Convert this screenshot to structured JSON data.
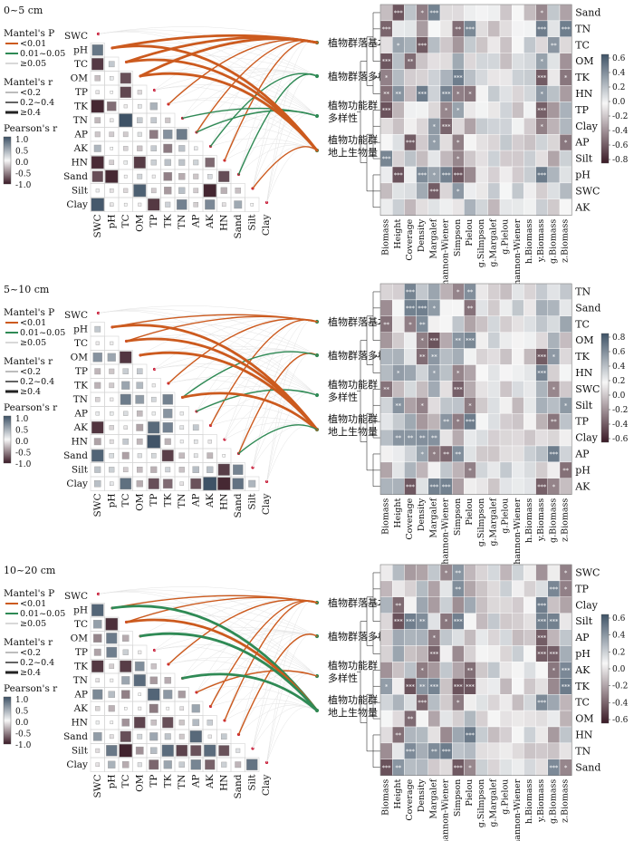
{
  "panels": [
    {
      "depth_label": "0~5 cm",
      "variable_order": [
        "SWC",
        "pH",
        "TC",
        "OM",
        "TP",
        "TK",
        "TN",
        "AP",
        "AK",
        "HN",
        "Sand",
        "Silt",
        "Clay"
      ],
      "heat_rows": [
        "Sand",
        "TN",
        "TC",
        "OM",
        "TK",
        "HN",
        "TP",
        "Clay",
        "AP",
        "Silt",
        "pH",
        "SWC",
        "AK"
      ],
      "colorbar_ticks": [
        "0.6",
        "0.4",
        "0.2",
        "0.0",
        "-0.2",
        "-0.4",
        "-0.6",
        "-0.8"
      ],
      "mantel": [
        {
          "from": "pH",
          "to": 0,
          "p": "lt01",
          "r": "ge04"
        },
        {
          "from": "TC",
          "to": 0,
          "p": "lt01",
          "r": "ge04"
        },
        {
          "from": "OM",
          "to": 0,
          "p": "lt01",
          "r": "ge04"
        },
        {
          "from": "TK",
          "to": 0,
          "p": "lt01",
          "r": "mid"
        },
        {
          "from": "AP",
          "to": 0,
          "p": "lt01",
          "r": "mid"
        },
        {
          "from": "HN",
          "to": 0,
          "p": "lt01",
          "r": "mid"
        },
        {
          "from": "AK",
          "to": 1,
          "p": "mid",
          "r": "mid"
        },
        {
          "from": "Sand",
          "to": 1,
          "p": "mid",
          "r": "mid"
        },
        {
          "from": "AP",
          "to": 2,
          "p": "mid",
          "r": "mid"
        },
        {
          "from": "TN",
          "to": 2,
          "p": "mid",
          "r": "mid"
        },
        {
          "from": "pH",
          "to": 3,
          "p": "lt01",
          "r": "ge04"
        },
        {
          "from": "TC",
          "to": 3,
          "p": "lt01",
          "r": "ge04"
        },
        {
          "from": "OM",
          "to": 3,
          "p": "lt01",
          "r": "ge04"
        },
        {
          "from": "Silt",
          "to": 3,
          "p": "lt01",
          "r": "mid"
        }
      ]
    },
    {
      "depth_label": "5~10 cm",
      "variable_order": [
        "SWC",
        "pH",
        "TC",
        "OM",
        "TP",
        "TK",
        "TN",
        "AP",
        "AK",
        "HN",
        "Sand",
        "Silt",
        "Clay"
      ],
      "heat_rows": [
        "TN",
        "Sand",
        "TC",
        "OM",
        "TK",
        "HN",
        "SWC",
        "Silt",
        "TP",
        "Clay",
        "AP",
        "pH",
        "AK"
      ],
      "colorbar_ticks": [
        "0.8",
        "0.6",
        "0.4",
        "0.2",
        "0.0",
        "-0.2",
        "-0.4",
        "-0.6"
      ],
      "mantel": [
        {
          "from": "pH",
          "to": 0,
          "p": "lt01",
          "r": "mid"
        },
        {
          "from": "TC",
          "to": 0,
          "p": "lt01",
          "r": "mid"
        },
        {
          "from": "TK",
          "to": 0,
          "p": "lt01",
          "r": "mid"
        },
        {
          "from": "AK",
          "to": 0,
          "p": "lt01",
          "r": "mid"
        },
        {
          "from": "Sand",
          "to": 1,
          "p": "lt01",
          "r": "mid"
        },
        {
          "from": "TN",
          "to": 1,
          "p": "mid",
          "r": "mid"
        },
        {
          "from": "AP",
          "to": 2,
          "p": "mid",
          "r": "mid"
        },
        {
          "from": "pH",
          "to": 3,
          "p": "lt01",
          "r": "ge04"
        },
        {
          "from": "TC",
          "to": 3,
          "p": "lt01",
          "r": "ge04"
        },
        {
          "from": "OM",
          "to": 3,
          "p": "lt01",
          "r": "ge04"
        },
        {
          "from": "TN",
          "to": 3,
          "p": "lt01",
          "r": "ge04"
        },
        {
          "from": "Sand",
          "to": 3,
          "p": "mid",
          "r": "mid"
        }
      ]
    },
    {
      "depth_label": "10~20 cm",
      "variable_order": [
        "SWC",
        "pH",
        "TC",
        "OM",
        "TP",
        "TK",
        "TN",
        "AP",
        "AK",
        "HN",
        "Sand",
        "Silt",
        "Clay"
      ],
      "heat_rows": [
        "SWC",
        "TP",
        "Clay",
        "Silt",
        "AP",
        "pH",
        "AK",
        "TK",
        "TC",
        "OM",
        "HN",
        "TN",
        "Sand"
      ],
      "colorbar_ticks": [
        "0.6",
        "0.4",
        "0.2",
        "0.0",
        "-0.2",
        "-0.4",
        "-0.6"
      ],
      "mantel": [
        {
          "from": "pH",
          "to": 0,
          "p": "lt01",
          "r": "mid"
        },
        {
          "from": "TC",
          "to": 0,
          "p": "lt01",
          "r": "mid"
        },
        {
          "from": "TK",
          "to": 0,
          "p": "lt01",
          "r": "mid"
        },
        {
          "from": "AK",
          "to": 0,
          "p": "lt01",
          "r": "mid"
        },
        {
          "from": "HN",
          "to": 0,
          "p": "lt01",
          "r": "mid"
        },
        {
          "from": "Sand",
          "to": 1,
          "p": "lt01",
          "r": "mid"
        },
        {
          "from": "AP",
          "to": 2,
          "p": "lt01",
          "r": "mid"
        },
        {
          "from": "pH",
          "to": 3,
          "p": "mid",
          "r": "ge04"
        },
        {
          "from": "TC",
          "to": 3,
          "p": "lt01",
          "r": "ge04"
        },
        {
          "from": "OM",
          "to": 3,
          "p": "mid",
          "r": "ge04"
        },
        {
          "from": "TN",
          "to": 3,
          "p": "mid",
          "r": "ge04"
        }
      ]
    }
  ],
  "targets": [
    "植物群落基本特征",
    "植物群落多样性",
    "植物功能群多样性",
    "植物功能群地上生物量"
  ],
  "target_lines": [
    [
      "植物群落基本特征"
    ],
    [
      "植物群落多样性"
    ],
    [
      "植物功能群",
      "多样性"
    ],
    [
      "植物功能群",
      "地上生物量"
    ]
  ],
  "heat_cols": [
    "Biomass",
    "Height",
    "Coverage",
    "Density",
    "Margalef",
    "Shannon-Wiener",
    "Simpson",
    "Pielou",
    "g.Silmpson",
    "g.Margalef",
    "g.Pielou",
    "g.Shannon-Wiener",
    "h.Biomass",
    "y.Biomass",
    "g.Biomass",
    "z.Biomass"
  ],
  "legend": {
    "mantel_p_title": "Mantel's P",
    "p_items": [
      "<0.01",
      "0.01~0.05",
      "≥0.05"
    ],
    "mantel_r_title": "Mantel's r",
    "r_items": [
      "<0.2",
      "0.2~0.4",
      "≥0.4"
    ],
    "pearson_title": "Pearson's r",
    "pearson_ticks": [
      "1.0",
      "0.5",
      "0.0",
      "-0.5",
      "-1.0"
    ]
  },
  "colors": {
    "positive": "#3e5266",
    "negative": "#3a1a26",
    "neutral": "#f7f7f7",
    "p_lt001": "#cc5a1e",
    "p_mid": "#2f8a55",
    "p_ge005": "#d8d8d8"
  }
}
